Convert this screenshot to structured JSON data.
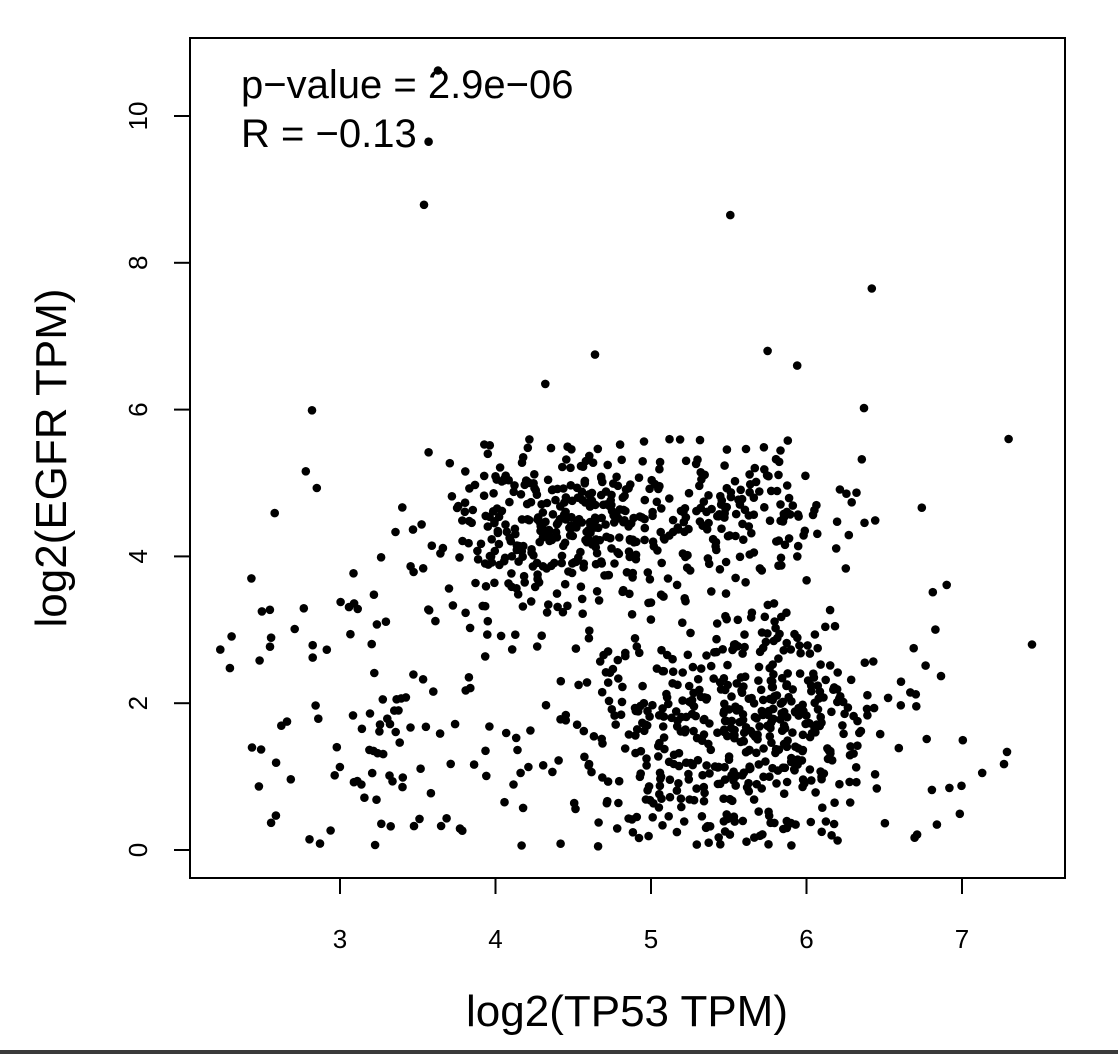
{
  "chart_data": {
    "type": "scatter",
    "title": "",
    "xlabel": "log2(TP53 TPM)",
    "ylabel": "log2(EGFR TPM)",
    "xlim": [
      2.2,
      7.5
    ],
    "ylim": [
      -0.4,
      11.0
    ],
    "xticks": [
      3,
      4,
      5,
      6,
      7
    ],
    "yticks": [
      0,
      2,
      4,
      6,
      8,
      10
    ],
    "annotations": [
      "p−value = 2.9e−06",
      "R = −0.13"
    ],
    "grid": false,
    "legend": "none",
    "point_color": "#000000",
    "n_points": 1200,
    "points_sample_outliers": [
      {
        "x": 3.63,
        "y": 10.62
      },
      {
        "x": 3.57,
        "y": 9.65
      },
      {
        "x": 3.54,
        "y": 8.79
      },
      {
        "x": 5.51,
        "y": 8.65
      },
      {
        "x": 6.42,
        "y": 7.65
      },
      {
        "x": 4.64,
        "y": 6.75
      },
      {
        "x": 5.75,
        "y": 6.8
      },
      {
        "x": 5.94,
        "y": 6.6
      },
      {
        "x": 4.32,
        "y": 6.35
      },
      {
        "x": 2.82,
        "y": 5.99
      },
      {
        "x": 6.37,
        "y": 6.02
      },
      {
        "x": 2.23,
        "y": 2.73
      },
      {
        "x": 7.45,
        "y": 2.8
      },
      {
        "x": 7.3,
        "y": 5.6
      },
      {
        "x": 2.43,
        "y": 3.7
      },
      {
        "x": 2.58,
        "y": 4.59
      },
      {
        "x": 2.78,
        "y": 5.16
      },
      {
        "x": 2.55,
        "y": 2.77
      },
      {
        "x": 7.13,
        "y": 1.05
      },
      {
        "x": 7.27,
        "y": 1.17
      },
      {
        "x": 6.2,
        "y": 0.13
      },
      {
        "x": 4.66,
        "y": 0.05
      }
    ],
    "clusters": [
      {
        "center_x": 4.45,
        "center_y": 4.45,
        "sd_x": 0.45,
        "sd_y": 0.55,
        "weight": 0.3
      },
      {
        "center_x": 5.55,
        "center_y": 4.65,
        "sd_x": 0.4,
        "sd_y": 0.45,
        "weight": 0.12
      },
      {
        "center_x": 5.55,
        "center_y": 1.65,
        "sd_x": 0.55,
        "sd_y": 0.9,
        "weight": 0.48
      },
      {
        "center_x": 3.4,
        "center_y": 1.9,
        "sd_x": 0.55,
        "sd_y": 1.05,
        "weight": 0.1
      }
    ]
  }
}
